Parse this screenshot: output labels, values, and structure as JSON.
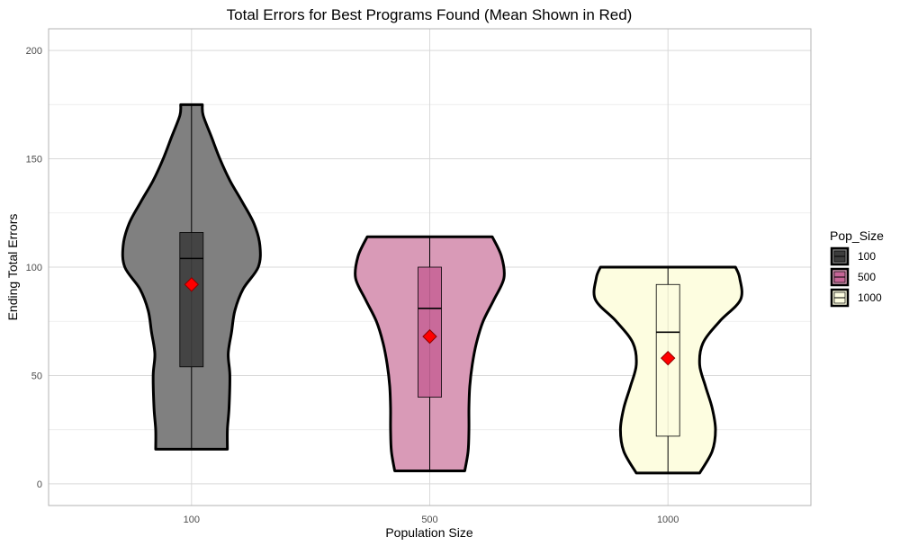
{
  "chart_data": {
    "type": "violin",
    "title": "Total Errors for Best Programs Found (Mean Shown in Red)",
    "xlabel": "Population Size",
    "ylabel": "Ending Total Errors",
    "ylim": [
      -10,
      210
    ],
    "yticks": [
      0,
      50,
      100,
      150,
      200
    ],
    "grid": true,
    "legend": {
      "title": "Pop_Size",
      "position": "right"
    },
    "mean_marker_color": "#ff0000",
    "categories": [
      "100",
      "500",
      "1000"
    ],
    "series": [
      {
        "name": "100",
        "color": "#808080",
        "box_color": "#3d3d3d",
        "min": 16,
        "max": 175,
        "q1": 54,
        "median": 104,
        "q3": 116,
        "mean": 92,
        "density": [
          [
            16,
            0.43
          ],
          [
            25,
            0.43
          ],
          [
            35,
            0.45
          ],
          [
            50,
            0.46
          ],
          [
            60,
            0.44
          ],
          [
            70,
            0.48
          ],
          [
            80,
            0.52
          ],
          [
            90,
            0.62
          ],
          [
            100,
            0.8
          ],
          [
            110,
            0.82
          ],
          [
            120,
            0.75
          ],
          [
            130,
            0.61
          ],
          [
            140,
            0.46
          ],
          [
            150,
            0.34
          ],
          [
            160,
            0.24
          ],
          [
            170,
            0.14
          ],
          [
            175,
            0.13
          ]
        ]
      },
      {
        "name": "500",
        "color": "#d99ab7",
        "box_color": "#c76597",
        "min": 6,
        "max": 114,
        "q1": 40,
        "median": 81,
        "q3": 100,
        "mean": 68,
        "density": [
          [
            6,
            0.42
          ],
          [
            15,
            0.46
          ],
          [
            25,
            0.47
          ],
          [
            35,
            0.47
          ],
          [
            45,
            0.48
          ],
          [
            55,
            0.51
          ],
          [
            65,
            0.56
          ],
          [
            75,
            0.64
          ],
          [
            85,
            0.77
          ],
          [
            95,
            0.89
          ],
          [
            105,
            0.86
          ],
          [
            114,
            0.75
          ]
        ]
      },
      {
        "name": "1000",
        "color": "#fdfde0",
        "box_color": "#fdfde0",
        "min": 5,
        "max": 100,
        "q1": 22,
        "median": 70,
        "q3": 92,
        "mean": 58,
        "density": [
          [
            5,
            0.38
          ],
          [
            15,
            0.53
          ],
          [
            25,
            0.57
          ],
          [
            35,
            0.53
          ],
          [
            45,
            0.45
          ],
          [
            55,
            0.38
          ],
          [
            65,
            0.42
          ],
          [
            75,
            0.62
          ],
          [
            85,
            0.87
          ],
          [
            95,
            0.86
          ],
          [
            100,
            0.81
          ]
        ]
      }
    ]
  }
}
